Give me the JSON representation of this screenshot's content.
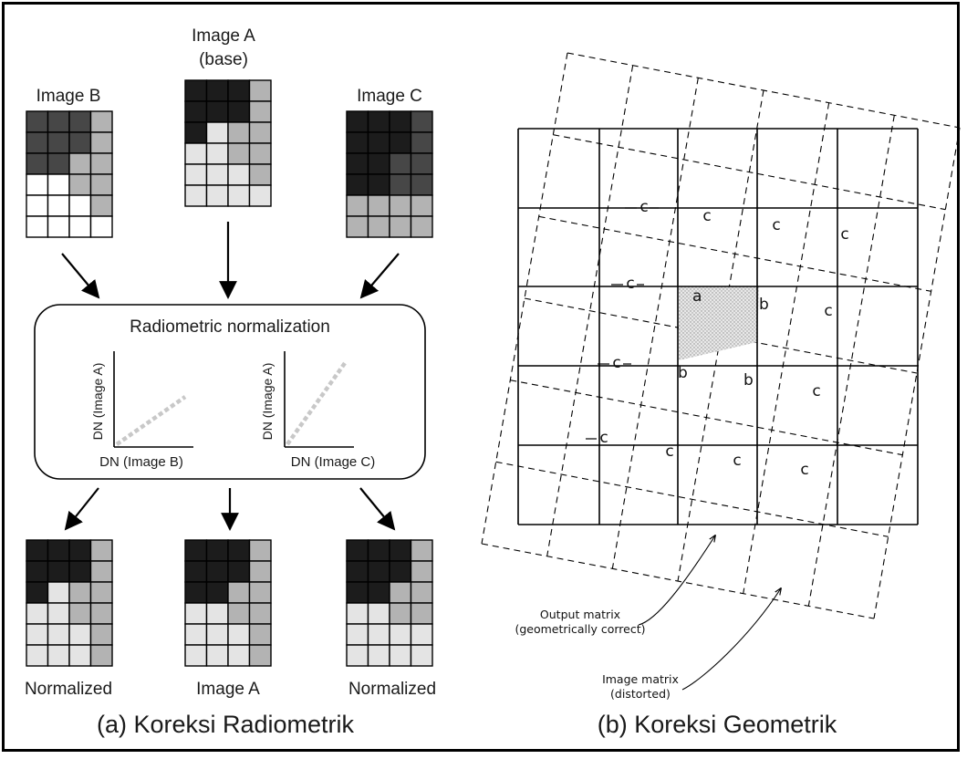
{
  "panel_a": {
    "caption": "(a) Koreksi Radiometrik",
    "top_labels": {
      "image_b": "Image B",
      "image_a_line1": "Image A",
      "image_a_line2": "(base)",
      "image_c": "Image C"
    },
    "box_title": "Radiometric normalization",
    "plot_left": {
      "xlabel": "DN (Image B)",
      "ylabel": "DN (Image A)"
    },
    "plot_right": {
      "xlabel": "DN (Image C)",
      "ylabel": "DN (Image A)"
    },
    "bottom_labels": {
      "left": "Normalized",
      "center": "Image A",
      "right": "Normalized"
    },
    "colors": {
      "black": "#1c1c1c",
      "dark": "#474747",
      "mid": "#b3b3b3",
      "light": "#e4e4e4",
      "white": "#ffffff",
      "dash": "#c8c8c8"
    },
    "grids": {
      "image_b": [
        [
          "d",
          "d",
          "d",
          "m"
        ],
        [
          "d",
          "d",
          "d",
          "m"
        ],
        [
          "d",
          "d",
          "m",
          "m"
        ],
        [
          "w",
          "w",
          "m",
          "m"
        ],
        [
          "w",
          "w",
          "w",
          "m"
        ],
        [
          "w",
          "w",
          "w",
          "w"
        ]
      ],
      "image_a": [
        [
          "k",
          "k",
          "k",
          "m"
        ],
        [
          "k",
          "k",
          "k",
          "m"
        ],
        [
          "k",
          "l",
          "m",
          "m"
        ],
        [
          "l",
          "l",
          "m",
          "m"
        ],
        [
          "l",
          "l",
          "l",
          "m"
        ],
        [
          "l",
          "l",
          "l",
          "l"
        ]
      ],
      "image_c": [
        [
          "k",
          "k",
          "k",
          "d"
        ],
        [
          "k",
          "k",
          "k",
          "d"
        ],
        [
          "k",
          "k",
          "d",
          "d"
        ],
        [
          "k",
          "k",
          "d",
          "d"
        ],
        [
          "m",
          "m",
          "m",
          "m"
        ],
        [
          "m",
          "m",
          "m",
          "m"
        ]
      ],
      "norm_left": [
        [
          "k",
          "k",
          "k",
          "m"
        ],
        [
          "k",
          "k",
          "k",
          "m"
        ],
        [
          "k",
          "l",
          "m",
          "m"
        ],
        [
          "l",
          "l",
          "m",
          "m"
        ],
        [
          "l",
          "l",
          "l",
          "m"
        ],
        [
          "l",
          "l",
          "l",
          "m"
        ]
      ],
      "norm_center": [
        [
          "k",
          "k",
          "k",
          "m"
        ],
        [
          "k",
          "k",
          "k",
          "m"
        ],
        [
          "k",
          "k",
          "m",
          "m"
        ],
        [
          "l",
          "l",
          "m",
          "m"
        ],
        [
          "l",
          "l",
          "l",
          "m"
        ],
        [
          "l",
          "l",
          "l",
          "m"
        ]
      ],
      "norm_right": [
        [
          "k",
          "k",
          "k",
          "m"
        ],
        [
          "k",
          "k",
          "k",
          "m"
        ],
        [
          "k",
          "k",
          "m",
          "m"
        ],
        [
          "l",
          "l",
          "m",
          "m"
        ],
        [
          "l",
          "l",
          "l",
          "l"
        ],
        [
          "l",
          "l",
          "l",
          "l"
        ]
      ]
    }
  },
  "panel_b": {
    "caption": "(b) Koreksi Geometrik",
    "cell_labels": [
      "c",
      "c",
      "c",
      "c",
      "c",
      "c",
      "c",
      "c",
      "c",
      "c",
      "c",
      "c",
      "c"
    ],
    "point_a": "a",
    "point_b": "b",
    "output_label_line1": "Output matrix",
    "output_label_line2": "(geometrically correct)",
    "image_label_line1": "Image matrix",
    "image_label_line2": "(distorted)"
  }
}
